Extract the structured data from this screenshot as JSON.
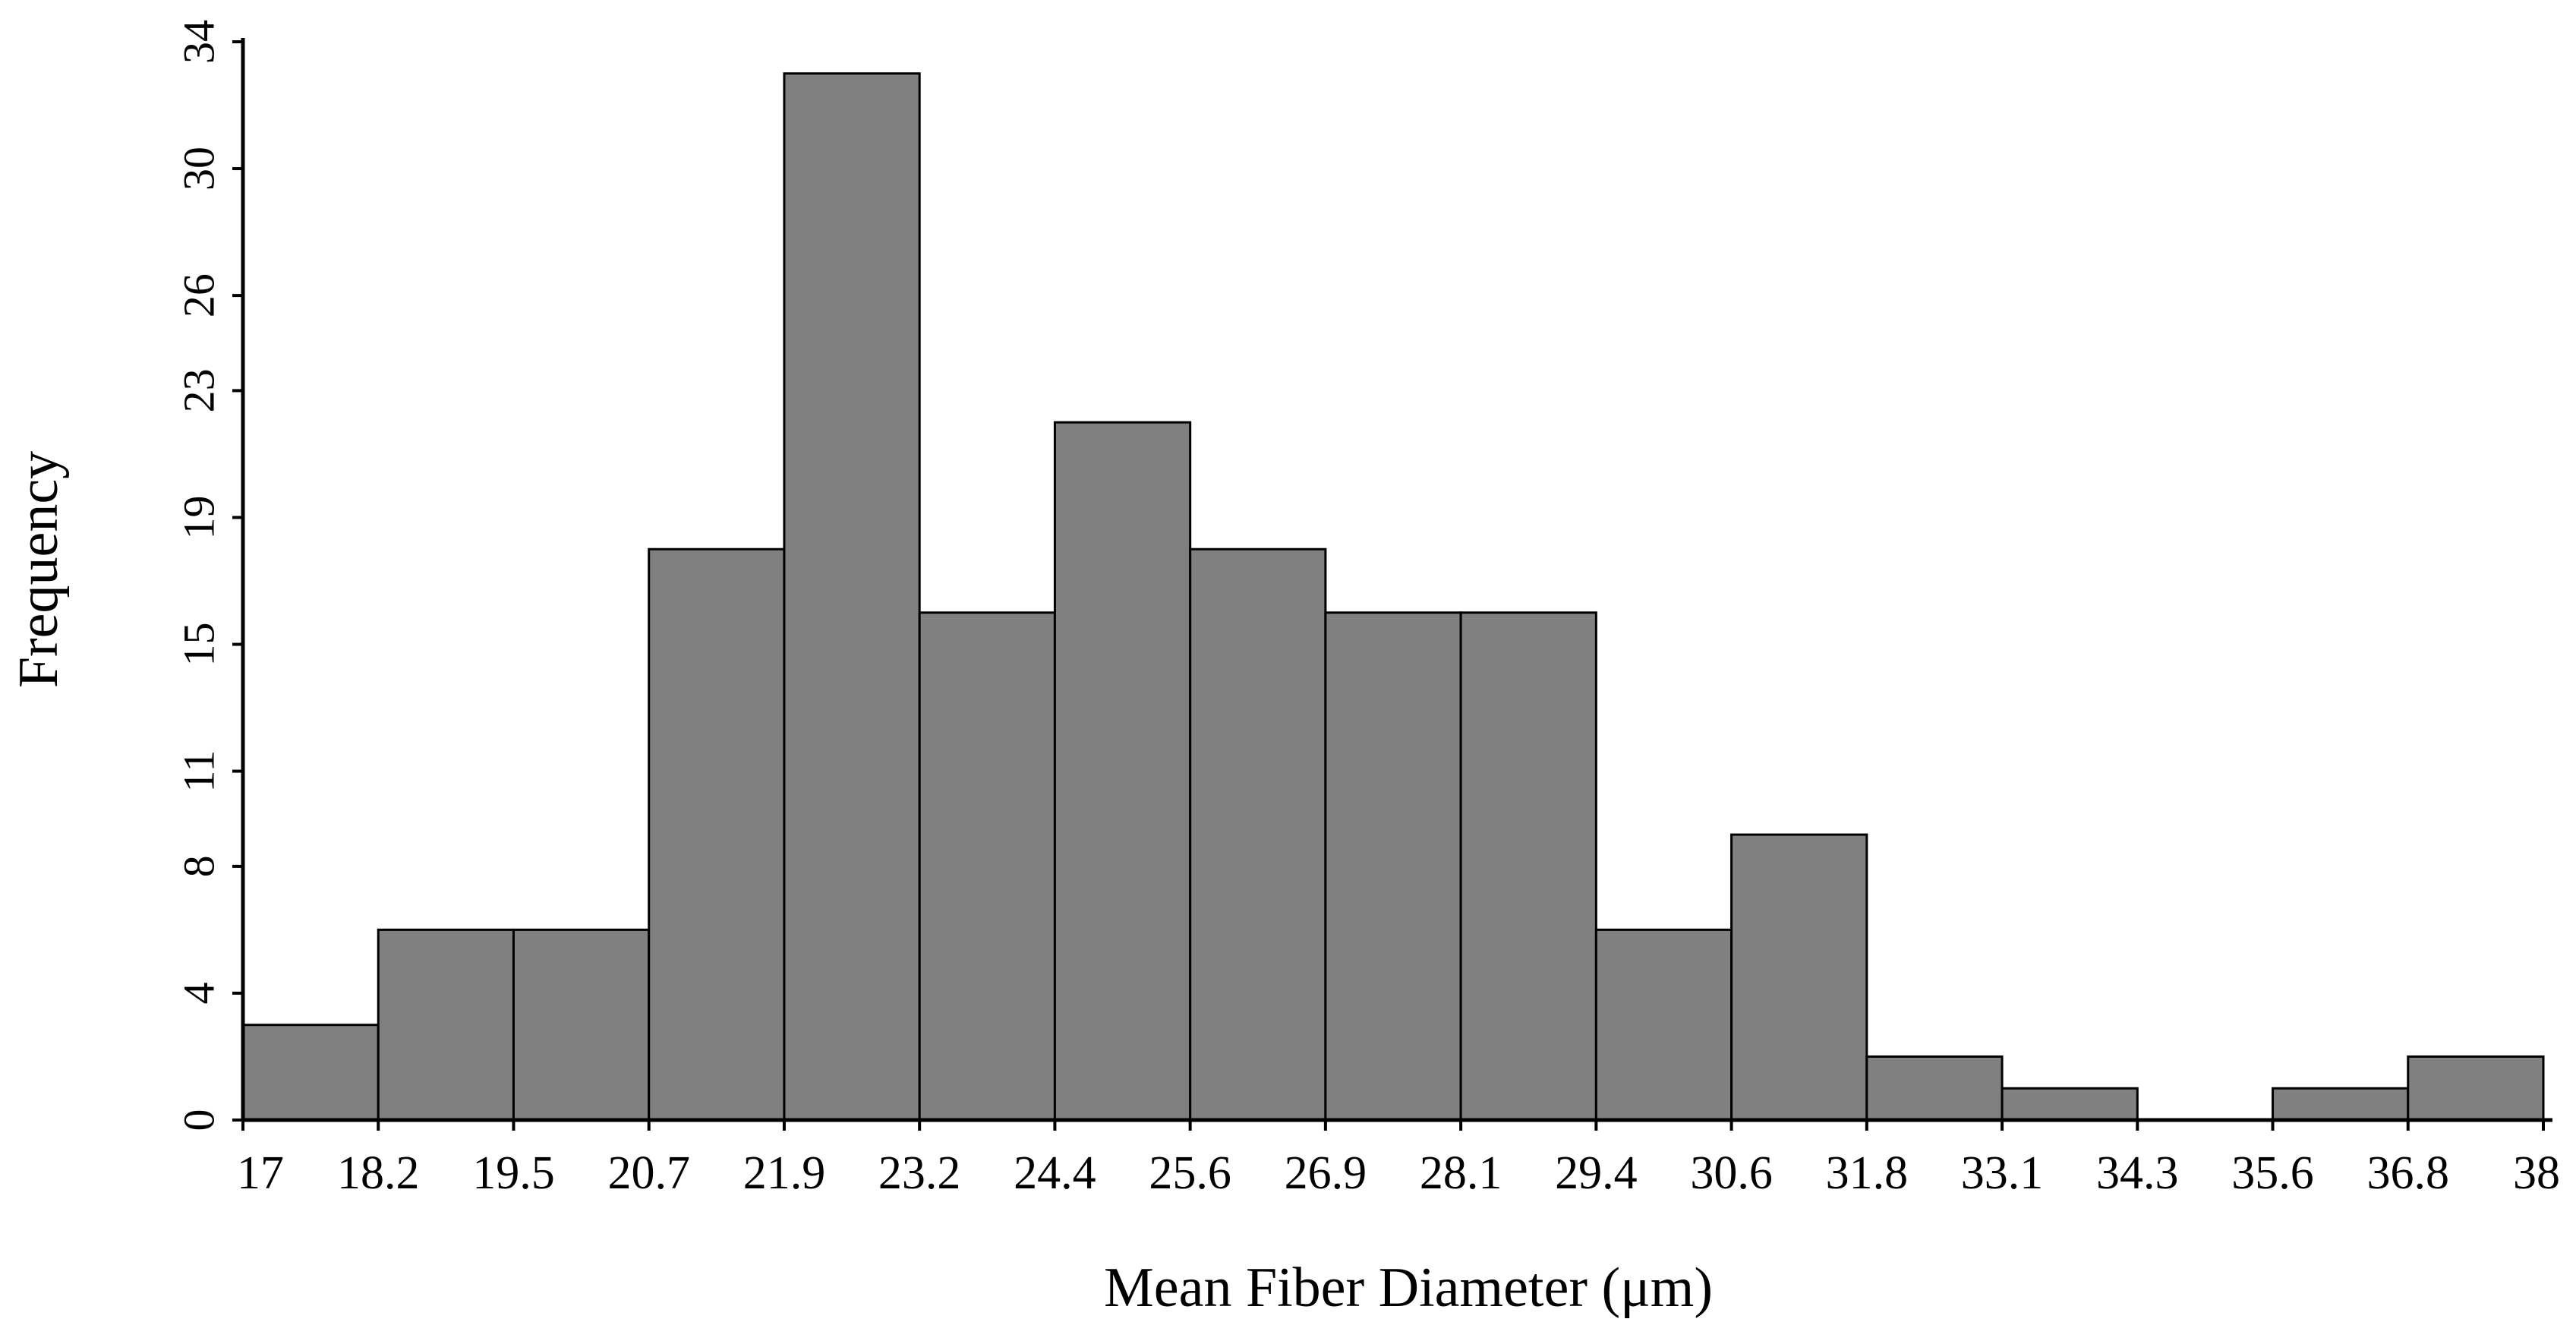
{
  "chart_data": {
    "type": "bar",
    "title": "",
    "xlabel": "Mean Fiber Diameter (μm)",
    "ylabel": "Frequency",
    "bin_edges": [
      17,
      18.2,
      19.5,
      20.7,
      21.9,
      23.2,
      24.4,
      25.6,
      26.9,
      28.1,
      29.4,
      30.6,
      31.8,
      33.1,
      34.3,
      35.6,
      36.8,
      38
    ],
    "x_tick_labels": [
      "17",
      "18.2",
      "19.5",
      "20.7",
      "21.9",
      "23.2",
      "24.4",
      "25.6",
      "26.9",
      "28.1",
      "29.4",
      "30.6",
      "31.8",
      "33.1",
      "34.3",
      "35.6",
      "36.8",
      "38"
    ],
    "values": [
      3,
      6,
      6,
      18,
      33,
      16,
      22,
      18,
      16,
      16,
      6,
      9,
      2,
      1,
      0,
      1,
      2
    ],
    "y_ticks": [
      0,
      4,
      8,
      11,
      15,
      19,
      23,
      26,
      30,
      34
    ],
    "ylim": [
      0,
      34
    ],
    "grid": false,
    "legend": "none",
    "colors": {
      "bar_fill": "#808080",
      "bar_stroke": "#000000",
      "axis": "#000000"
    }
  }
}
